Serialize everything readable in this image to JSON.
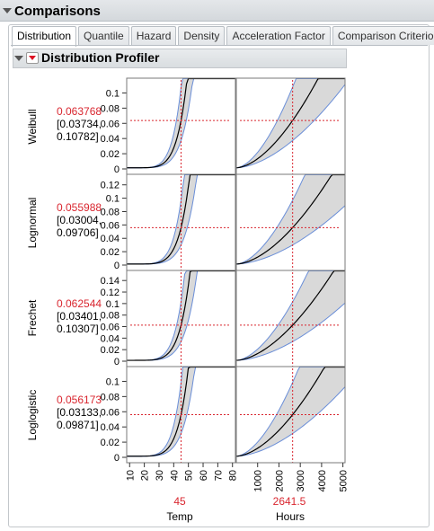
{
  "header": {
    "title": "Comparisons"
  },
  "tabs": [
    {
      "label": "Distribution",
      "active": true
    },
    {
      "label": "Quantile",
      "active": false
    },
    {
      "label": "Hazard",
      "active": false
    },
    {
      "label": "Density",
      "active": false
    },
    {
      "label": "Acceleration Factor",
      "active": false
    },
    {
      "label": "Comparison Criterion",
      "active": false
    }
  ],
  "profiler": {
    "title": "Distribution Profiler"
  },
  "rows": [
    {
      "name": "Weibull",
      "value": "0.063768",
      "ci_low": "[0.03734,",
      "ci_high": "0.10782]",
      "yticks": [
        "0",
        "0.02",
        "0.04",
        "0.06",
        "0.08",
        "0.1"
      ],
      "ymax": 0.11
    },
    {
      "name": "Lognormal",
      "value": "0.055988",
      "ci_low": "[0.03004,",
      "ci_high": "0.09706]",
      "yticks": [
        "0",
        "0.02",
        "0.04",
        "0.06",
        "0.08",
        "0.1",
        "0.12"
      ],
      "ymax": 0.125
    },
    {
      "name": "Frechet",
      "value": "0.062544",
      "ci_low": "[0.03401,",
      "ci_high": "0.10307]",
      "yticks": [
        "0",
        "0.02",
        "0.04",
        "0.06",
        "0.08",
        "0.1",
        "0.12",
        "0.14"
      ],
      "ymax": 0.145
    },
    {
      "name": "Loglogistic",
      "value": "0.056173",
      "ci_low": "[0.03133,",
      "ci_high": "0.09871]",
      "yticks": [
        "0",
        "0.02",
        "0.04",
        "0.06",
        "0.08",
        "0.1"
      ],
      "ymax": 0.11
    }
  ],
  "factors": [
    {
      "name": "Temp",
      "current": "45",
      "current_value": 45,
      "xmin": 8,
      "xmax": 82,
      "ticks": [
        "10",
        "20",
        "30",
        "40",
        "50",
        "60",
        "70",
        "80"
      ]
    },
    {
      "name": "Hours",
      "current": "2641.5",
      "current_value": 2641.5,
      "xmin": 0,
      "xmax": 5100,
      "ticks": [
        "1000",
        "2000",
        "3000",
        "4000",
        "5000"
      ]
    }
  ],
  "colors": {
    "curve": "#000000",
    "band_fill": "#d9d9d9",
    "band_edge": "#6a8ed8",
    "crosshair": "#d9262f",
    "value_red": "#d9262f"
  }
}
